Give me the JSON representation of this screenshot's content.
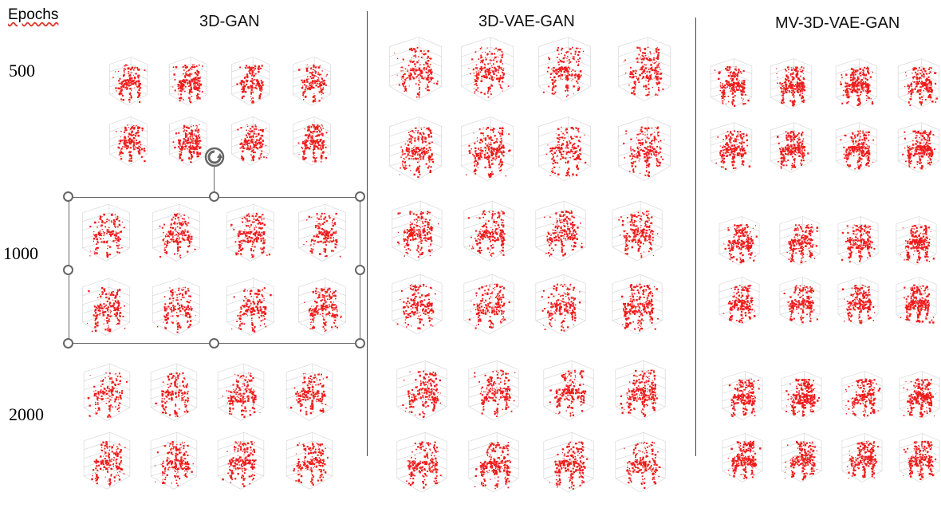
{
  "axis_label": "Epochs",
  "columns": [
    {
      "title": "3D-GAN"
    },
    {
      "title": "3D-VAE-GAN"
    },
    {
      "title": "MV-3D-VAE-GAN"
    }
  ],
  "rows": [
    {
      "label": "500"
    },
    {
      "label": "1000"
    },
    {
      "label": "2000"
    }
  ],
  "thumbnail_content": "red voxel chair render",
  "colors": {
    "voxel": "#ee1c1c",
    "grid": "#d2d2d2",
    "selection": "#666666"
  },
  "icons": {
    "rotate": "rotate-icon"
  }
}
